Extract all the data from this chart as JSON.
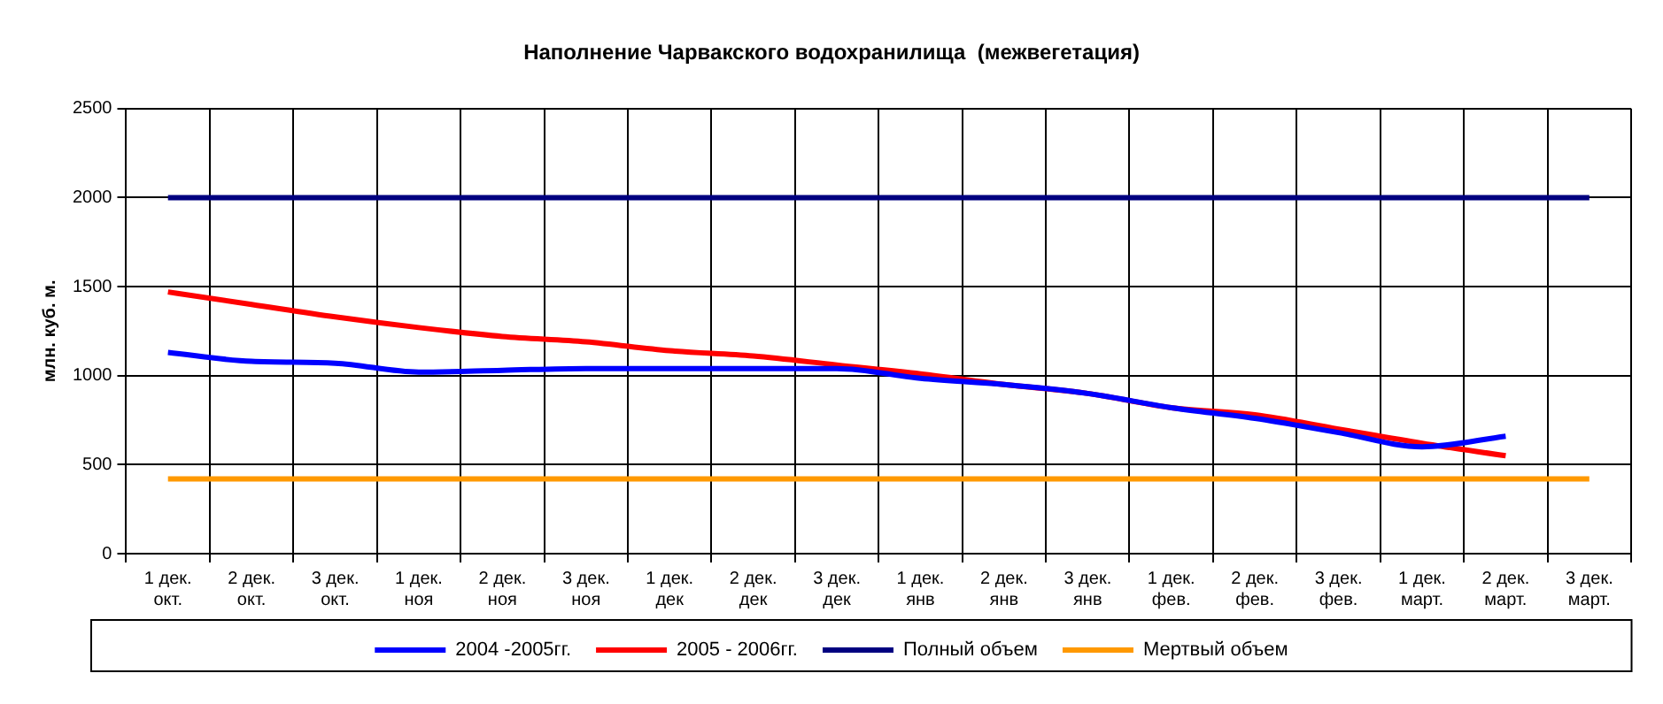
{
  "chart_data": {
    "type": "line",
    "title": "Наполнение Чарвакского водохранилища  (межвегетация)",
    "ylabel": "млн. куб. м.",
    "categories": [
      "1 дек.\nокт.",
      "2 дек.\nокт.",
      "3 дек.\nокт.",
      "1 дек.\nноя",
      "2 дек.\nноя",
      "3 дек.\nноя",
      "1 дек.\nдек",
      "2 дек.\nдек",
      "3 дек.\nдек",
      "1 дек.\nянв",
      "2 дек.\nянв",
      "3 дек.\nянв",
      "1 дек.\nфев.",
      "2 дек.\nфев.",
      "3 дек.\nфев.",
      "1 дек.\nмарт.",
      "2 дек.\nмарт.",
      "3 дек.\nмарт."
    ],
    "series": [
      {
        "name": "2004 -2005гг.",
        "color": "#0000ff",
        "values": [
          1130,
          1080,
          1070,
          1020,
          1030,
          1040,
          1040,
          1040,
          1040,
          985,
          950,
          900,
          820,
          760,
          680,
          600,
          660,
          null
        ]
      },
      {
        "name": "2005 - 2006гг.",
        "color": "#ff0000",
        "values": [
          1470,
          1400,
          1330,
          1270,
          1220,
          1190,
          1140,
          1110,
          1060,
          1010,
          950,
          900,
          820,
          780,
          700,
          620,
          550,
          null
        ]
      },
      {
        "name": "Полный объем",
        "color": "#000080",
        "values": [
          2000,
          2000,
          2000,
          2000,
          2000,
          2000,
          2000,
          2000,
          2000,
          2000,
          2000,
          2000,
          2000,
          2000,
          2000,
          2000,
          2000,
          2000
        ]
      },
      {
        "name": "Мертвый объем",
        "color": "#ff9900",
        "values": [
          420,
          420,
          420,
          420,
          420,
          420,
          420,
          420,
          420,
          420,
          420,
          420,
          420,
          420,
          420,
          420,
          420,
          420
        ]
      }
    ],
    "ylim": [
      0,
      2500
    ],
    "yticks": [
      0,
      500,
      1000,
      1500,
      2000,
      2500
    ],
    "grid": true,
    "legend": "bottom",
    "line_style": "solid",
    "marker": "none"
  }
}
